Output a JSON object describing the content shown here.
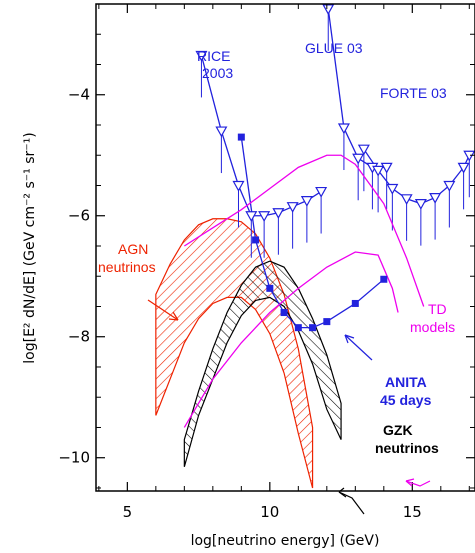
{
  "chart_data": {
    "type": "line",
    "xlabel": "log[neutrino energy] (GeV)",
    "ylabel": "log[E² dN/dE] (GeV cm⁻² s⁻¹ sr⁻¹)",
    "xlim": [
      3.9,
      17.2
    ],
    "ylim": [
      -10.55,
      -2.5
    ],
    "xticks": [
      5,
      10,
      15
    ],
    "yticks": [
      -4,
      -6,
      -8,
      -10
    ],
    "grid": false,
    "series": [
      {
        "key": "rice",
        "color": "#2222dd",
        "marker": "triangle-down",
        "x": [
          7.6,
          8.3,
          8.9,
          9.35,
          9.8,
          10.3,
          10.8,
          11.3,
          11.8
        ],
        "y": [
          -3.35,
          -4.6,
          -5.5,
          -6.0,
          -6.0,
          -5.95,
          -5.85,
          -5.75,
          -5.6
        ]
      },
      {
        "key": "glue",
        "color": "#2222dd",
        "marker": "triangle-down",
        "x": [
          12.05,
          12.6,
          13.1,
          13.6,
          14.1
        ],
        "y": [
          -2.58,
          -4.55,
          -5.05,
          -5.2,
          -5.2
        ]
      },
      {
        "key": "forte",
        "color": "#2222dd",
        "marker": "triangle-down",
        "x": [
          13.3,
          13.8,
          14.3,
          14.8,
          15.3,
          15.8,
          16.3,
          16.8,
          17.0
        ],
        "y": [
          -4.9,
          -5.25,
          -5.55,
          -5.72,
          -5.8,
          -5.7,
          -5.5,
          -5.2,
          -5.0
        ]
      },
      {
        "key": "anita",
        "color": "#2222dd",
        "marker": "square",
        "x": [
          9.0,
          9.5,
          10.0,
          10.5,
          11.0,
          11.5,
          12.0,
          13.0,
          14.0
        ],
        "y": [
          -4.7,
          -6.4,
          -7.2,
          -7.6,
          -7.85,
          -7.85,
          -7.75,
          -7.45,
          -7.05
        ]
      },
      {
        "key": "td1",
        "color": "#ee00ee",
        "x": [
          7.0,
          8.0,
          9.0,
          10.0,
          11.0,
          12.0,
          12.5,
          13.0,
          14.0,
          14.8,
          15.4
        ],
        "y": [
          -6.5,
          -6.2,
          -5.9,
          -5.55,
          -5.2,
          -5.0,
          -5.0,
          -5.15,
          -5.8,
          -6.7,
          -7.5
        ]
      },
      {
        "key": "td2",
        "color": "#ee00ee",
        "x": [
          7.0,
          8.0,
          9.0,
          10.0,
          11.0,
          12.0,
          13.0,
          13.8,
          14.3,
          14.5
        ],
        "y": [
          -9.5,
          -8.7,
          -8.1,
          -7.6,
          -7.2,
          -6.85,
          -6.6,
          -6.65,
          -7.2,
          -7.6
        ]
      }
    ],
    "bands": [
      {
        "key": "agn",
        "color": "#ee2200",
        "x": [
          6.0,
          6.5,
          7.0,
          7.5,
          8.0,
          8.5,
          9.0,
          9.5,
          10.0,
          10.5,
          11.0,
          11.5
        ],
        "upper": [
          -7.3,
          -6.8,
          -6.4,
          -6.15,
          -6.05,
          -6.05,
          -6.1,
          -6.3,
          -6.7,
          -7.3,
          -8.2,
          -9.5
        ],
        "lower": [
          -9.3,
          -8.7,
          -8.1,
          -7.7,
          -7.45,
          -7.35,
          -7.35,
          -7.55,
          -7.95,
          -8.6,
          -9.6,
          -10.5
        ]
      },
      {
        "key": "gzk",
        "color": "#000000",
        "x": [
          7.0,
          7.5,
          8.0,
          8.5,
          9.0,
          9.5,
          10.0,
          10.5,
          11.0,
          11.5,
          12.0,
          12.5
        ],
        "upper": [
          -9.7,
          -8.9,
          -8.2,
          -7.6,
          -7.15,
          -6.85,
          -6.75,
          -6.85,
          -7.2,
          -7.7,
          -8.3,
          -9.1
        ],
        "lower": [
          -10.15,
          -9.3,
          -8.7,
          -8.1,
          -7.65,
          -7.4,
          -7.35,
          -7.5,
          -7.9,
          -8.45,
          -9.2,
          -9.7
        ]
      }
    ]
  },
  "labels": {
    "rice": "RICE",
    "rice_year": "2003",
    "glue": "GLUE 03",
    "forte": "FORTE 03",
    "agn_line1": "AGN",
    "agn_line2": "neutrinos",
    "td_line1": "TD",
    "td_line2": "models",
    "anita_line1": "ANITA",
    "anita_line2": "45 days",
    "gzk_line1": "GZK",
    "gzk_line2": "neutrinos"
  },
  "colors": {
    "limits": "#2222dd",
    "agn": "#ee2200",
    "td": "#ee00ee",
    "gzk": "#000000"
  }
}
